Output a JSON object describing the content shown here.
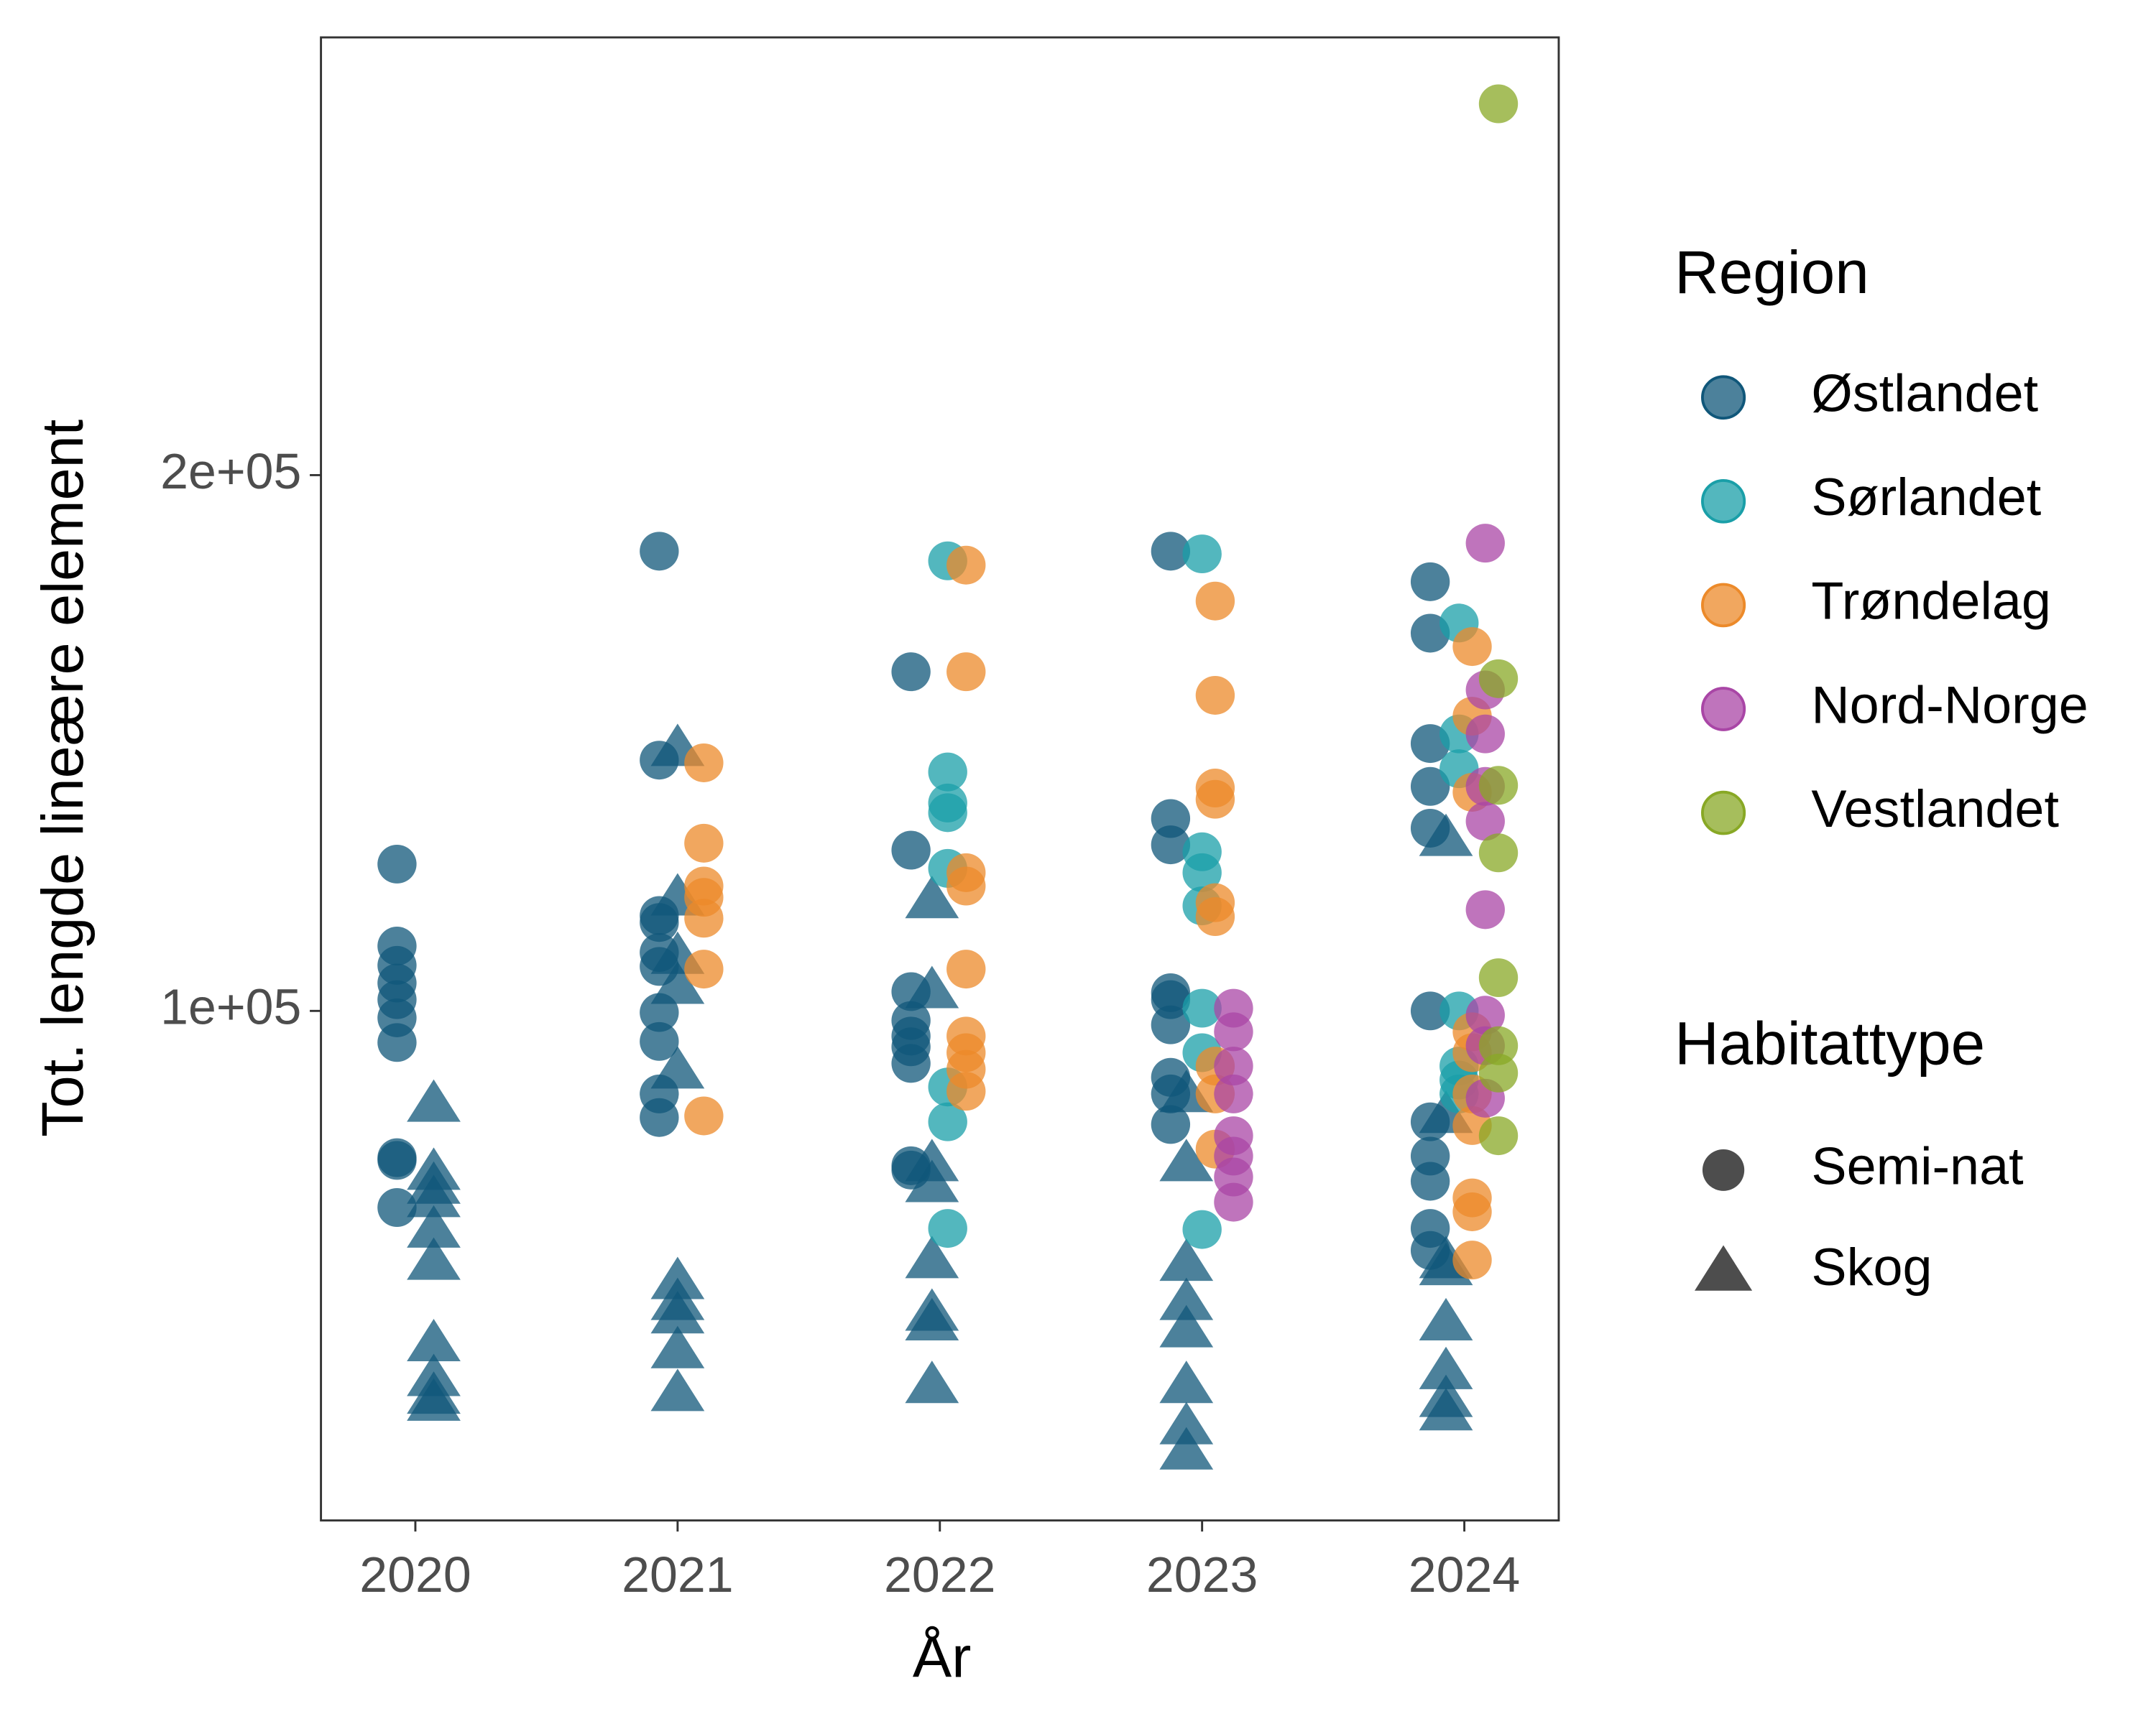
{
  "chart_data": {
    "type": "scatter",
    "x_label": "År",
    "y_label": "Tot. lengde lineære element",
    "xlim": [
      2019.64,
      2024.36
    ],
    "ylim": [
      4900,
      281700
    ],
    "xticks": [
      2020,
      2021,
      2022,
      2023,
      2024
    ],
    "yticks": [
      {
        "value": 100000,
        "label": "1e+05"
      },
      {
        "value": 200000,
        "label": "2e+05"
      }
    ],
    "color_legend_title": "Region",
    "shape_legend_title": "Habitattype",
    "habitats": [
      {
        "name": "Semi-nat",
        "shape": "circle"
      },
      {
        "name": "Skog",
        "shape": "triangle"
      }
    ],
    "series": [
      {
        "name": "Østlandet",
        "color": "#10577a",
        "groups": [
          {
            "x": [
              2019.93,
              2019.93,
              2019.93,
              2019.93,
              2019.93,
              2019.93,
              2019.93,
              2019.93,
              2019.93,
              2019.93,
              2020.93,
              2020.93,
              2020.93,
              2020.93,
              2020.93,
              2020.93,
              2020.93,
              2020.93,
              2020.93,
              2020.93,
              2021.89,
              2021.89,
              2021.89,
              2021.89,
              2021.89,
              2021.89,
              2021.89,
              2021.89,
              2021.89,
              2022.88,
              2022.88,
              2022.88,
              2022.88,
              2022.88,
              2022.88,
              2022.88,
              2022.88,
              2022.88,
              2023.87,
              2023.87,
              2023.87,
              2023.87,
              2023.87,
              2023.87,
              2023.87,
              2023.87,
              2023.87,
              2023.87,
              2023.87
            ],
            "values": [
              127400,
              112100,
              108500,
              105200,
              102100,
              98700,
              94100,
              72600,
              72100,
              63300,
              185800,
              146800,
              117800,
              116500,
              110900,
              108300,
              99700,
              94300,
              84500,
              80100,
              163300,
              130000,
              103600,
              98200,
              95300,
              93300,
              90200,
              71100,
              70300,
              185800,
              135900,
              131000,
              103400,
              102100,
              97400,
              87600,
              84500,
              78800,
              180100,
              170500,
              149900,
              141900,
              134100,
              100000,
              79300,
              72900,
              68200,
              59400,
              55300
            ]
          },
          {
            "x": [
              2020.07,
              2020.07,
              2020.07,
              2020.07,
              2020.07,
              2020.07,
              2020.07,
              2020.07,
              2020.07,
              2020.07,
              2021.0,
              2021.0,
              2021.0,
              2021.0,
              2021.0,
              2021.0,
              2021.0,
              2021.0,
              2021.0,
              2021.0,
              2021.97,
              2021.97,
              2021.97,
              2021.97,
              2021.97,
              2021.97,
              2021.97,
              2021.97,
              2022.94,
              2022.94,
              2022.94,
              2022.94,
              2022.94,
              2022.94,
              2022.94,
              2022.94,
              2023.93,
              2023.93,
              2023.93,
              2023.93,
              2023.93,
              2023.93,
              2023.93,
              2023.93
            ],
            "values": [
              82700,
              70000,
              67400,
              64900,
              59200,
              53200,
              38000,
              31500,
              28200,
              26900,
              149100,
              121200,
              110300,
              104700,
              88900,
              49600,
              45700,
              43200,
              36700,
              28700,
              120700,
              103900,
              71600,
              67700,
              53500,
              43700,
              41900,
              30200,
              84500,
              71600,
              53000,
              45700,
              40600,
              30200,
              22500,
              17800,
              132300,
              80600,
              53500,
              52200,
              41900,
              32800,
              27600,
              25100
            ]
          }
        ]
      },
      {
        "name": "Sørlandet",
        "color": "#1a9fa8",
        "groups": [
          {
            "x": [
              2022.03,
              2022.03,
              2022.03,
              2022.03,
              2022.03,
              2022.03,
              2022.03,
              2022.03,
              2023.0,
              2023.0,
              2023.0,
              2023.0,
              2023.0,
              2023.0,
              2023.0,
              2023.98,
              2023.98,
              2023.98,
              2023.98,
              2023.98,
              2023.98,
              2023.98
            ],
            "values": [
              184000,
              144600,
              138800,
              137000,
              126600,
              85800,
              79300,
              59400,
              185300,
              129700,
              125800,
              119600,
              100500,
              92200,
              59200,
              172400,
              151700,
              145200,
              100000,
              89700,
              87100,
              84500
            ]
          }
        ]
      },
      {
        "name": "Trøndelag",
        "color": "#ec8a2a",
        "groups": [
          {
            "x": [
              2021.1,
              2021.1,
              2021.1,
              2021.1,
              2021.1,
              2021.1,
              2021.1,
              2022.1,
              2022.1,
              2022.1,
              2022.1,
              2022.1,
              2022.1,
              2022.1,
              2022.1,
              2022.1,
              2023.05,
              2023.05,
              2023.05,
              2023.05,
              2023.05,
              2023.05,
              2023.05,
              2023.05,
              2023.05,
              2024.03,
              2024.03,
              2024.03,
              2024.03,
              2024.03,
              2024.03,
              2024.03,
              2024.03,
              2024.03,
              2024.03
            ],
            "values": [
              146300,
              131300,
              123300,
              121200,
              117300,
              107800,
              80400,
              183200,
              163300,
              125800,
              123300,
              107800,
              95300,
              92200,
              89100,
              85000,
              176500,
              158900,
              141600,
              139500,
              120200,
              117600,
              89700,
              84500,
              74200,
              168000,
              155000,
              140800,
              96100,
              92200,
              84500,
              78600,
              65100,
              62500,
              53500
            ]
          }
        ]
      },
      {
        "name": "Nord-Norge",
        "color": "#a946a6",
        "groups": [
          {
            "x": [
              2023.12,
              2023.12,
              2023.12,
              2023.12,
              2023.12,
              2023.12,
              2023.12,
              2023.12,
              2024.08,
              2024.08,
              2024.08,
              2024.08,
              2024.08,
              2024.08,
              2024.08,
              2024.08,
              2024.08
            ],
            "values": [
              100500,
              96100,
              89700,
              84500,
              76700,
              72900,
              69000,
              64300,
              187300,
              159900,
              151700,
              141900,
              135400,
              118900,
              99200,
              93500,
              83700
            ]
          }
        ]
      },
      {
        "name": "Vestlandet",
        "color": "#88a825",
        "groups": [
          {
            "x": [
              2024.13,
              2024.13,
              2024.13,
              2024.13,
              2024.13,
              2024.13,
              2024.13,
              2024.13
            ],
            "values": [
              269300,
              162000,
              142100,
              129500,
              106200,
              93500,
              88400,
              76700
            ]
          }
        ]
      }
    ]
  }
}
